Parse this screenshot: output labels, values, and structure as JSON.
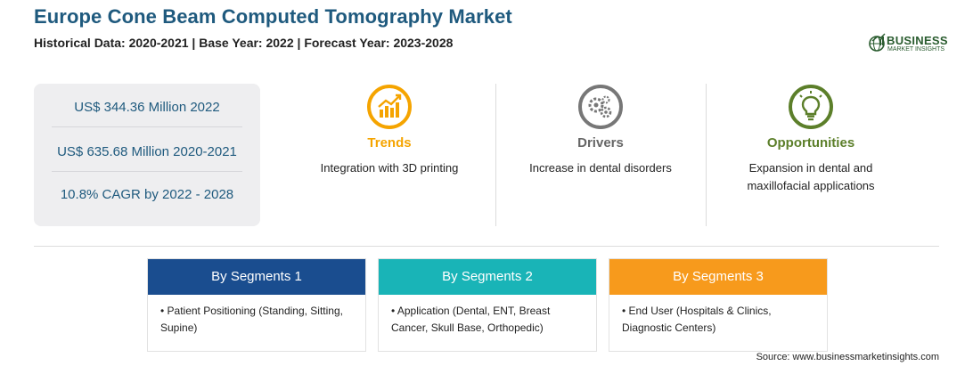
{
  "header": {
    "title": "Europe Cone Beam Computed Tomography Market",
    "subtitle": "Historical Data: 2020-2021 | Base Year: 2022 | Forecast Year: 2023-2028"
  },
  "logo": {
    "line1": "BUSINESS",
    "line2": "MARKET INSIGHTS",
    "color": "#2a5c2f"
  },
  "stats": [
    "US$ 344.36 Million 2022",
    "US$ 635.68 Million 2020-2021",
    "10.8% CAGR by 2022 - 2028"
  ],
  "features": {
    "trends": {
      "heading": "Trends",
      "text": "Integration with 3D printing",
      "icon": "chart-growth-icon",
      "color": "#f5a400"
    },
    "drivers": {
      "heading": "Drivers",
      "text": "Increase in dental disorders",
      "icon": "gears-icon",
      "color": "#666666"
    },
    "opportunities": {
      "heading": "Opportunities",
      "text": "Expansion in dental and maxillofacial applications",
      "icon": "lightbulb-icon",
      "color": "#5c7f2a"
    }
  },
  "segments": [
    {
      "title": "By Segments 1",
      "body": "• Patient Positioning (Standing, Sitting, Supine)",
      "color": "#1a4d8f"
    },
    {
      "title": "By Segments 2",
      "body": "• Application (Dental, ENT, Breast Cancer, Skull Base, Orthopedic)",
      "color": "#19b4b7"
    },
    {
      "title": "By Segments 3",
      "body": "• End User (Hospitals & Clinics, Diagnostic Centers)",
      "color": "#f79a1c"
    }
  ],
  "source": "Source: www.businessmarketinsights.com"
}
